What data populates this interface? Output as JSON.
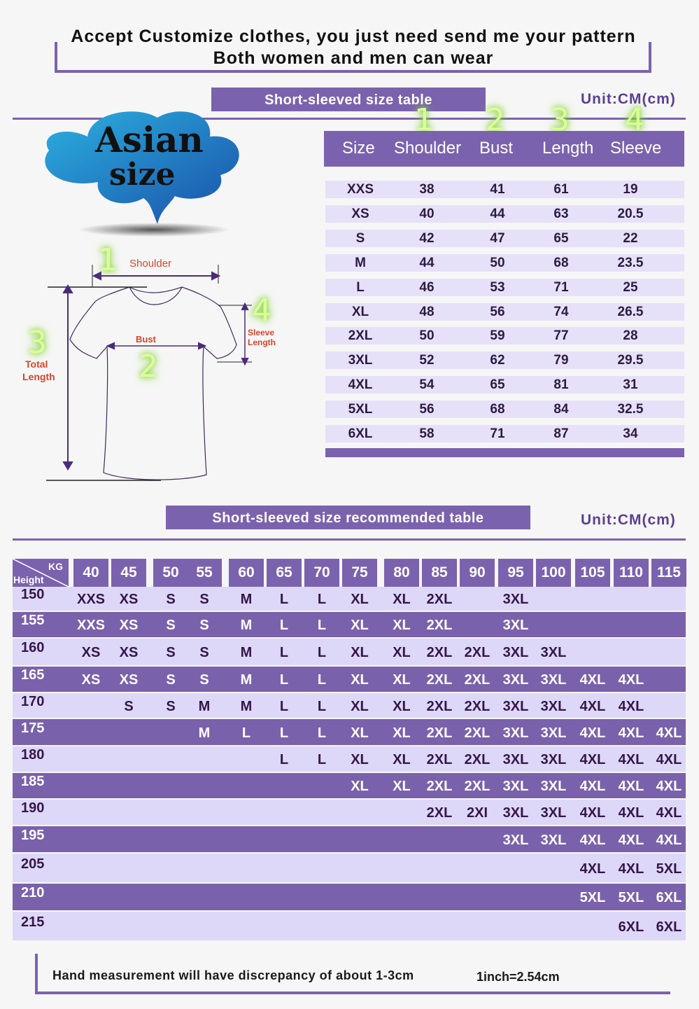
{
  "header": {
    "line1": "Accept Customize clothes, you just need send me your pattern",
    "line2": "Both women and men can wear"
  },
  "size_table": {
    "title": "Short-sleeved size  table",
    "unit": "Unit:CM(cm)",
    "markers": [
      "1",
      "2",
      "3",
      "4"
    ],
    "columns": [
      "Size",
      "Shoulder",
      "Bust",
      "Length",
      "Sleeve"
    ],
    "rows": [
      [
        "XXS",
        "38",
        "41",
        "61",
        "19"
      ],
      [
        "XS",
        "40",
        "44",
        "63",
        "20.5"
      ],
      [
        "S",
        "42",
        "47",
        "65",
        "22"
      ],
      [
        "M",
        "44",
        "50",
        "68",
        "23.5"
      ],
      [
        "L",
        "46",
        "53",
        "71",
        "25"
      ],
      [
        "XL",
        "48",
        "56",
        "74",
        "26.5"
      ],
      [
        "2XL",
        "50",
        "59",
        "77",
        "28"
      ],
      [
        "3XL",
        "52",
        "62",
        "79",
        "29.5"
      ],
      [
        "4XL",
        "54",
        "65",
        "81",
        "31"
      ],
      [
        "5XL",
        "56",
        "68",
        "84",
        "32.5"
      ],
      [
        "6XL",
        "58",
        "71",
        "87",
        "34"
      ]
    ]
  },
  "badge": {
    "line1": "Asian",
    "line2": "size",
    "color": "#1f8fd0"
  },
  "diagram": {
    "shoulder": {
      "num": "1",
      "label": "Shoulder"
    },
    "bust": {
      "num": "2",
      "label": "Bust"
    },
    "total_length": {
      "num": "3",
      "label1": "Total",
      "label2": "Length"
    },
    "sleeve_length": {
      "num": "4",
      "label1": "Sleeve",
      "label2": "Length"
    }
  },
  "rec_table": {
    "title": "Short-sleeved size recommended table",
    "unit": "Unit:CM(cm)",
    "corner_kg": "KG",
    "corner_height": "Height",
    "weights": [
      "40",
      "45",
      "50",
      "55",
      "60",
      "65",
      "70",
      "75",
      "80",
      "85",
      "90",
      "95",
      "100",
      "105",
      "110",
      "115"
    ],
    "rows": [
      {
        "h": "150",
        "v": [
          "XXS",
          "XS",
          "S",
          "S",
          "M",
          "L",
          "L",
          "XL",
          "XL",
          "2XL",
          "",
          "3XL",
          "",
          "",
          "",
          ""
        ]
      },
      {
        "h": "155",
        "v": [
          "XXS",
          "XS",
          "S",
          "S",
          "M",
          "L",
          "L",
          "XL",
          "XL",
          "2XL",
          "",
          "3XL",
          "",
          "",
          "",
          ""
        ]
      },
      {
        "h": "160",
        "v": [
          "XS",
          "XS",
          "S",
          "S",
          "M",
          "L",
          "L",
          "XL",
          "XL",
          "2XL",
          "2XL",
          "3XL",
          "3XL",
          "",
          "",
          ""
        ]
      },
      {
        "h": "165",
        "v": [
          "XS",
          "XS",
          "S",
          "S",
          "M",
          "L",
          "L",
          "XL",
          "XL",
          "2XL",
          "2XL",
          "3XL",
          "3XL",
          "4XL",
          "4XL",
          ""
        ]
      },
      {
        "h": "170",
        "v": [
          "",
          "S",
          "S",
          "M",
          "M",
          "L",
          "L",
          "XL",
          "XL",
          "2XL",
          "2XL",
          "3XL",
          "3XL",
          "4XL",
          "4XL",
          ""
        ]
      },
      {
        "h": "175",
        "v": [
          "",
          "",
          "",
          "M",
          "L",
          "L",
          "L",
          "XL",
          "XL",
          "2XL",
          "2XL",
          "3XL",
          "3XL",
          "4XL",
          "4XL",
          "4XL"
        ]
      },
      {
        "h": "180",
        "v": [
          "",
          "",
          "",
          "",
          "",
          "L",
          "L",
          "XL",
          "XL",
          "2XL",
          "2XL",
          "3XL",
          "3XL",
          "4XL",
          "4XL",
          "4XL"
        ]
      },
      {
        "h": "185",
        "v": [
          "",
          "",
          "",
          "",
          "",
          "",
          "",
          "XL",
          "XL",
          "2XL",
          "2XL",
          "3XL",
          "3XL",
          "4XL",
          "4XL",
          "4XL"
        ]
      },
      {
        "h": "190",
        "v": [
          "",
          "",
          "",
          "",
          "",
          "",
          "",
          "",
          "",
          "2XL",
          "2XI",
          "3XL",
          "3XL",
          "4XL",
          "4XL",
          "4XL"
        ]
      },
      {
        "h": "195",
        "v": [
          "",
          "",
          "",
          "",
          "",
          "",
          "",
          "",
          "",
          "",
          "",
          "3XL",
          "3XL",
          "4XL",
          "4XL",
          "4XL"
        ]
      },
      {
        "h": "205",
        "v": [
          "",
          "",
          "",
          "",
          "",
          "",
          "",
          "",
          "",
          "",
          "",
          "",
          "",
          "4XL",
          "4XL",
          "5XL"
        ]
      },
      {
        "h": "210",
        "v": [
          "",
          "",
          "",
          "",
          "",
          "",
          "",
          "",
          "",
          "",
          "",
          "",
          "",
          "5XL",
          "5XL",
          "6XL"
        ]
      },
      {
        "h": "215",
        "v": [
          "",
          "",
          "",
          "",
          "",
          "",
          "",
          "",
          "",
          "",
          "",
          "",
          "",
          "",
          "6XL",
          "6XL"
        ]
      }
    ]
  },
  "footer": {
    "note": "Hand measurement will have discrepancy of about  1-3cm",
    "conversion": "1inch=2.54cm"
  },
  "colors": {
    "accent": "#7b62ae",
    "light_row": "#ddd8f7",
    "label_red": "#d6452c",
    "marker_green": "#9be04a"
  }
}
